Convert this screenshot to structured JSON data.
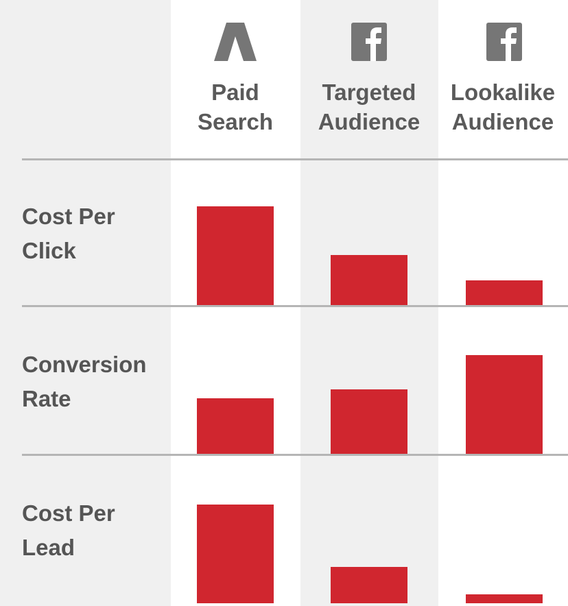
{
  "colors": {
    "background": "#f0f0f0",
    "column_highlight": "#ffffff",
    "bar": "#d0262f",
    "divider": "#b5b5b5",
    "text": "#555555",
    "icon": "#767676"
  },
  "columns": [
    {
      "label": "Paid\nSearch",
      "icon": "google-ads-icon"
    },
    {
      "label": "Targeted\nAudience",
      "icon": "facebook-icon"
    },
    {
      "label": "Lookalike\nAudience",
      "icon": "facebook-icon"
    }
  ],
  "rows": [
    {
      "label": "Cost Per\nClick"
    },
    {
      "label": "Conversion\nRate"
    },
    {
      "label": "Cost Per\nLead"
    }
  ],
  "chart_data": {
    "type": "bar",
    "categories": [
      "Paid Search",
      "Targeted Audience",
      "Lookalike Audience"
    ],
    "series": [
      {
        "name": "Cost Per Click",
        "values": [
          100,
          51,
          25
        ]
      },
      {
        "name": "Conversion Rate",
        "values": [
          56,
          65,
          100
        ]
      },
      {
        "name": "Cost Per Lead",
        "values": [
          100,
          37,
          9
        ]
      }
    ],
    "ylim": [
      0,
      100
    ],
    "xlabel": "",
    "ylabel": "",
    "grid": false,
    "axis_ticks": false
  }
}
